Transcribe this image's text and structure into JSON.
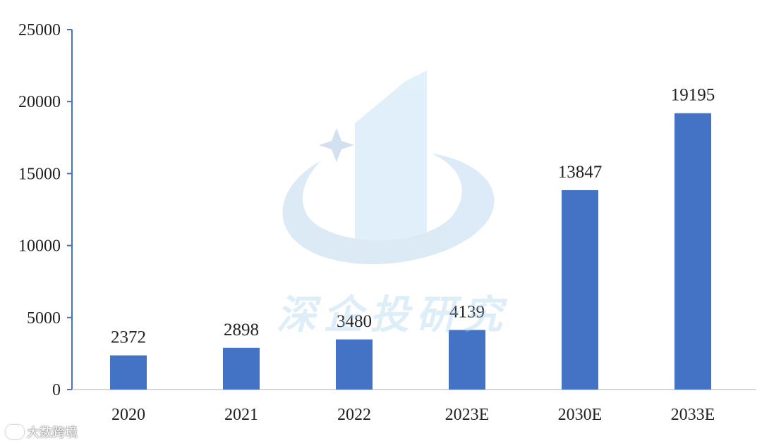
{
  "chart_data": {
    "type": "bar",
    "categories": [
      "2020",
      "2021",
      "2022",
      "2023E",
      "2030E",
      "2033E"
    ],
    "values": [
      2372,
      2898,
      3480,
      4139,
      13847,
      19195
    ],
    "ylim": [
      0,
      25000
    ],
    "yticks": [
      0,
      5000,
      10000,
      15000,
      20000,
      25000
    ],
    "grid": false,
    "bar_color": "#4472c4",
    "axis_color": "#4472c4"
  },
  "watermark": {
    "text": "深企投研究",
    "color": "#a0cdeb"
  },
  "credit": {
    "text": "大数跨境",
    "icon": "chat-bubble-icon"
  }
}
